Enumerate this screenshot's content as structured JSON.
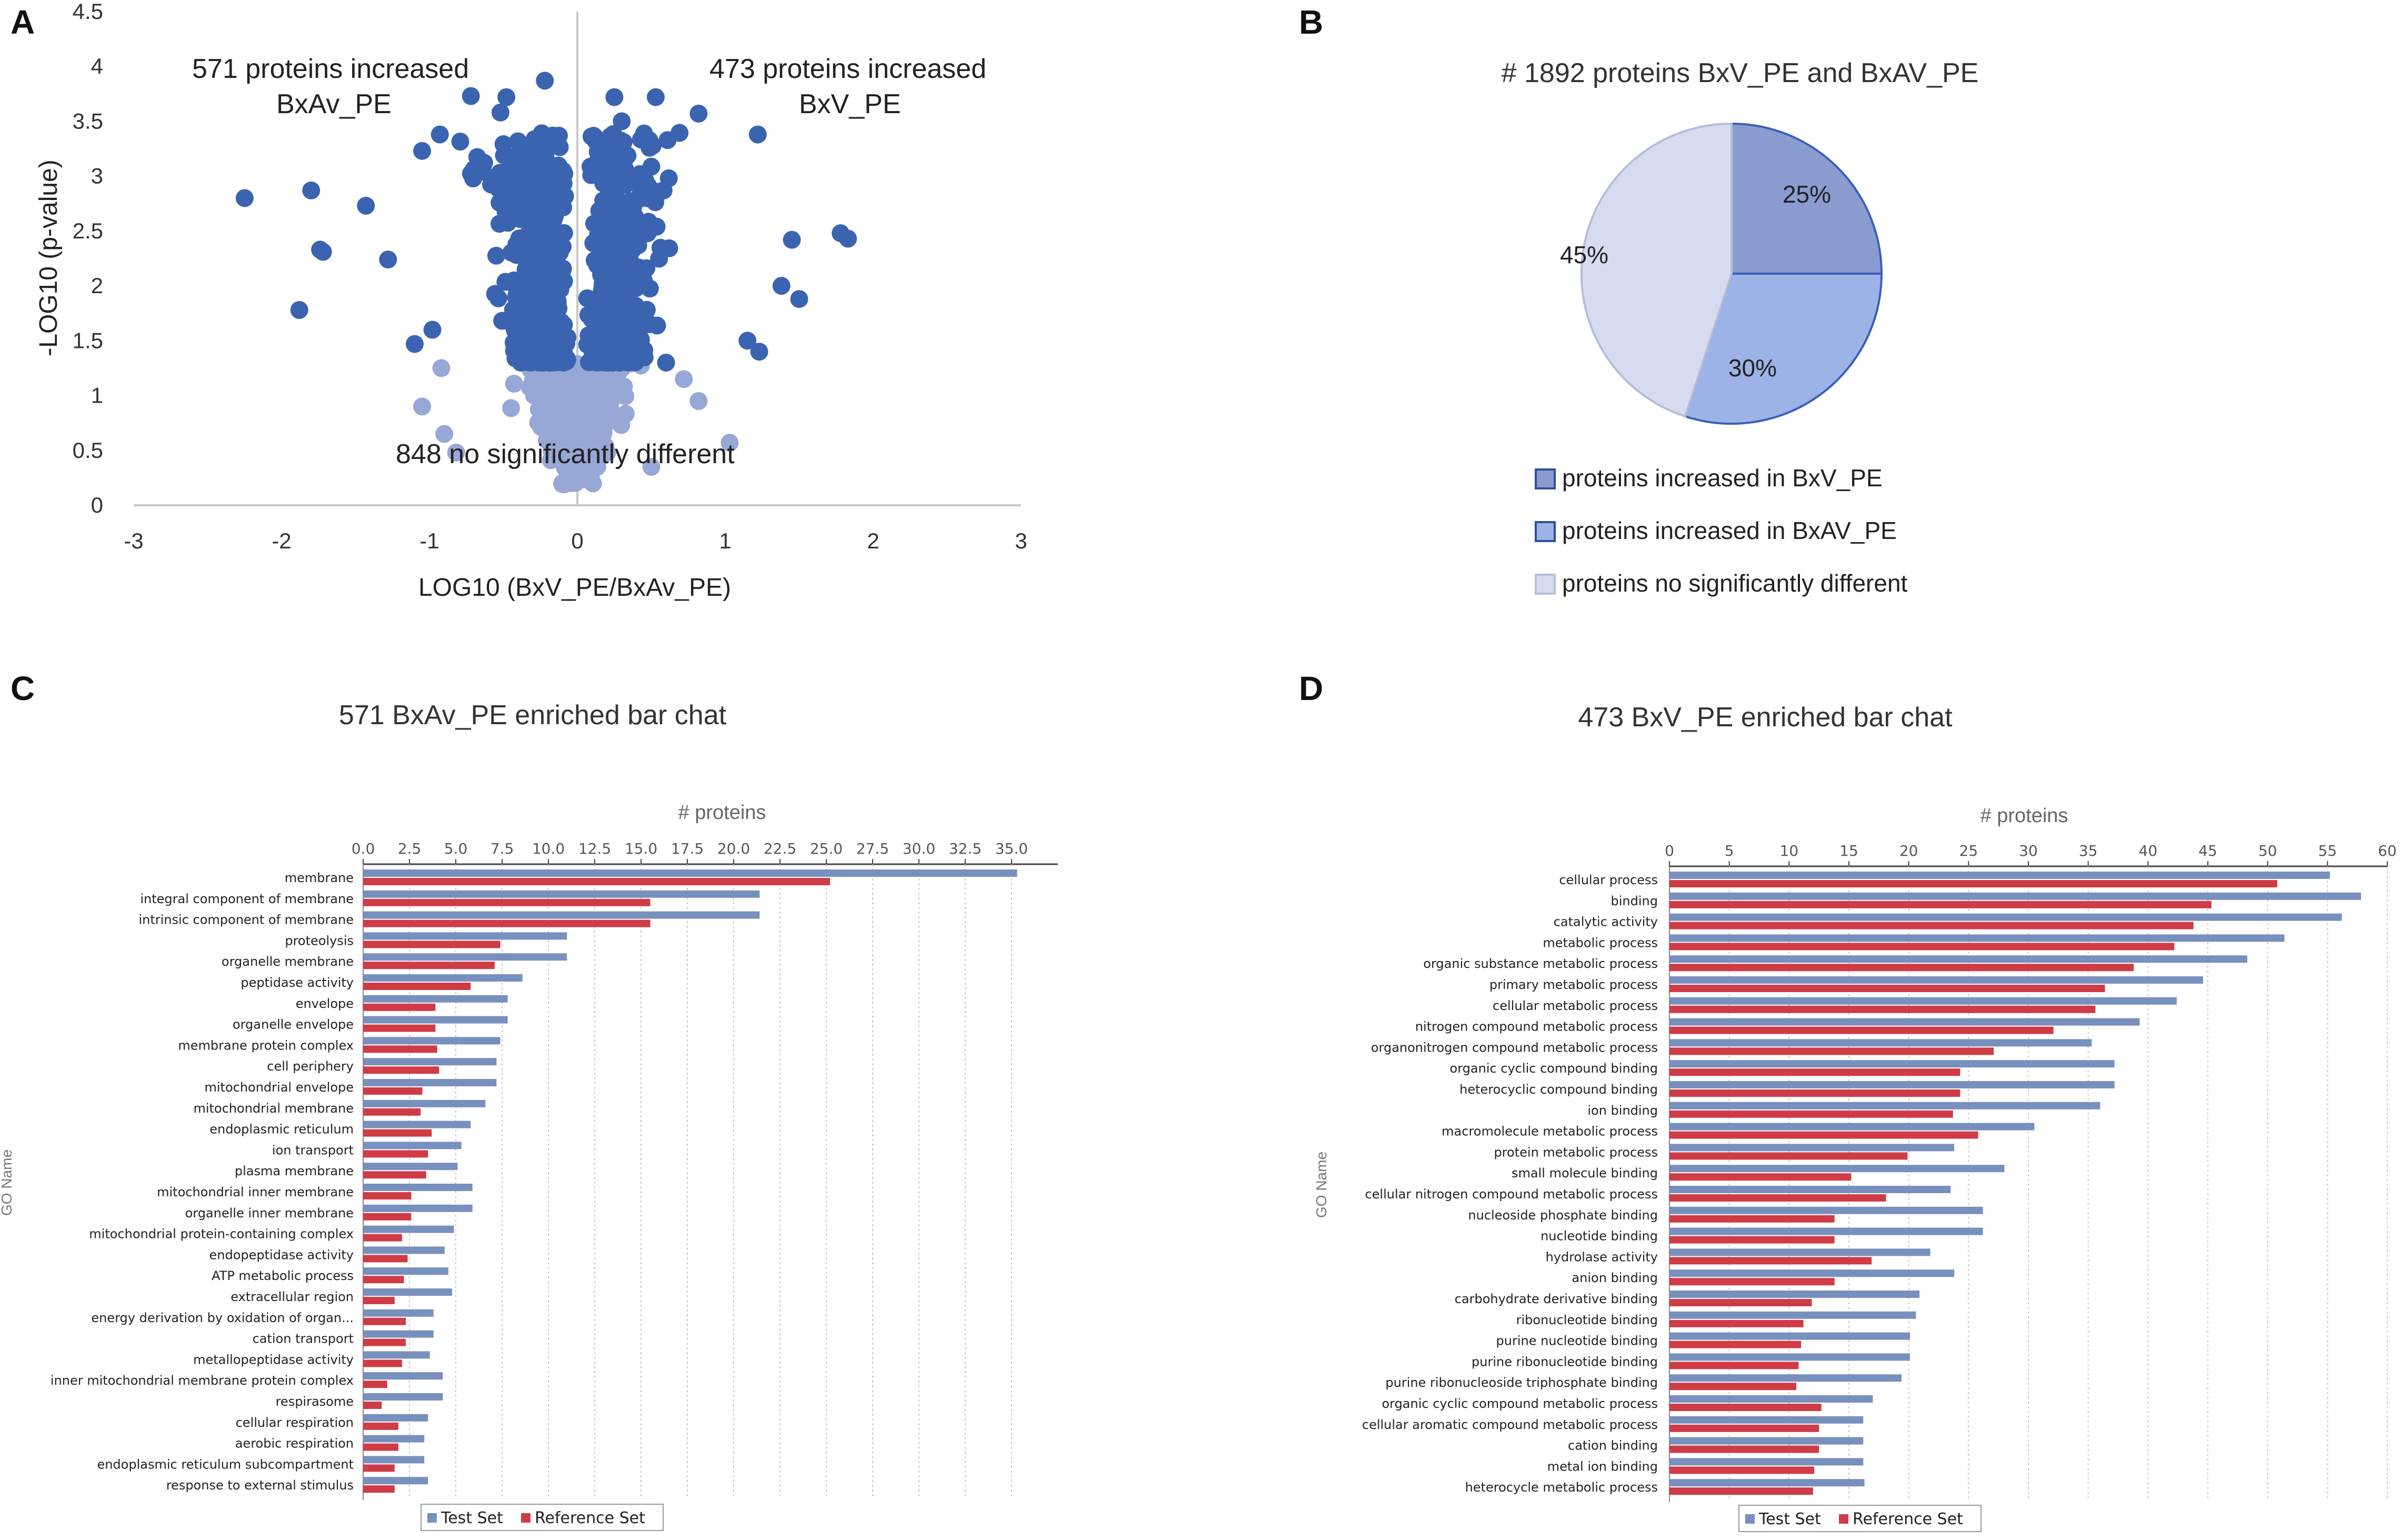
{
  "panels": {
    "a": "A",
    "b": "B",
    "c": "C",
    "d": "D"
  },
  "colors": {
    "sig": "#3a64b0",
    "nonsig": "#97a7d6",
    "pie_bxv": "#8a9ccf",
    "pie_bxav": "#9db2e6",
    "pie_nonsig": "#d6dcef",
    "test_bar": "#7890bd",
    "ref_bar": "#cf3c46"
  },
  "chart_data": [
    {
      "id": "A",
      "type": "scatter",
      "title": "",
      "xlabel": "LOG10 (BxV_PE/BxAv_PE)",
      "ylabel": "-LOG10 (p-value)",
      "xlim": [
        -3,
        3
      ],
      "ylim": [
        0,
        4.5
      ],
      "xticks": [
        "-3",
        "-2",
        "-1",
        "0",
        "1",
        "2",
        "3"
      ],
      "yticks": [
        "0",
        "0.5",
        "1",
        "1.5",
        "2",
        "2.5",
        "3",
        "3.5",
        "4",
        "4.5"
      ],
      "significance_threshold": 1.3,
      "annotations": {
        "left_line1": "571 proteins increased",
        "left_line2": "BxAv_PE",
        "right_line1": "473 proteins increased",
        "right_line2": "BxV_PE",
        "bottom": "848 no significantly different"
      },
      "outliers": [
        [
          -2.25,
          2.8
        ],
        [
          -1.8,
          2.87
        ],
        [
          -1.74,
          2.33
        ],
        [
          -1.72,
          2.31
        ],
        [
          -1.43,
          2.73
        ],
        [
          -1.88,
          1.78
        ],
        [
          -1.28,
          2.24
        ],
        [
          -1.05,
          3.23
        ],
        [
          -0.93,
          3.38
        ],
        [
          -0.72,
          3.73
        ],
        [
          -0.48,
          3.72
        ],
        [
          -0.22,
          3.87
        ],
        [
          -0.52,
          3.58
        ],
        [
          -1.1,
          1.47
        ],
        [
          -0.98,
          1.6
        ],
        [
          0.25,
          3.72
        ],
        [
          0.53,
          3.72
        ],
        [
          1.22,
          3.38
        ],
        [
          0.82,
          3.57
        ],
        [
          0.3,
          3.5
        ],
        [
          1.78,
          2.48
        ],
        [
          1.83,
          2.43
        ],
        [
          1.5,
          1.88
        ],
        [
          1.45,
          2.42
        ],
        [
          1.15,
          1.5
        ],
        [
          1.23,
          1.4
        ],
        [
          1.38,
          2.0
        ],
        [
          1.03,
          0.57
        ],
        [
          0.82,
          0.95
        ],
        [
          -0.82,
          0.48
        ],
        [
          -0.9,
          0.65
        ],
        [
          -1.05,
          0.9
        ],
        [
          -0.92,
          1.25
        ],
        [
          0.6,
          1.3
        ],
        [
          0.72,
          1.15
        ],
        [
          0.5,
          0.35
        ]
      ]
    },
    {
      "id": "B",
      "type": "pie",
      "title": "# 1892 proteins BxV_PE and BxAV_PE",
      "slices": [
        {
          "label": "proteins increased in BxV_PE",
          "value": 25,
          "pct": "25%"
        },
        {
          "label": "proteins increased in BxAV_PE",
          "value": 30,
          "pct": "30%"
        },
        {
          "label": "proteins no significantly different",
          "value": 45,
          "pct": "45%"
        }
      ]
    },
    {
      "id": "C",
      "type": "bar",
      "orientation": "horizontal",
      "title": "571 BxAv_PE enriched bar chat",
      "xlabel": "# proteins",
      "ylabel": "GO Name",
      "xlim": [
        0,
        37.5
      ],
      "xticks": [
        "0.0",
        "2.5",
        "5.0",
        "7.5",
        "10.0",
        "12.5",
        "15.0",
        "17.5",
        "20.0",
        "22.5",
        "25.0",
        "27.5",
        "30.0",
        "32.5",
        "35.0"
      ],
      "series": [
        {
          "name": "Test Set"
        },
        {
          "name": "Reference Set"
        }
      ],
      "categories": [
        "membrane",
        "integral component of membrane",
        "intrinsic component of membrane",
        "proteolysis",
        "organelle membrane",
        "peptidase activity",
        "envelope",
        "organelle envelope",
        "membrane protein complex",
        "cell periphery",
        "mitochondrial envelope",
        "mitochondrial membrane",
        "endoplasmic reticulum",
        "ion transport",
        "plasma membrane",
        "mitochondrial inner membrane",
        "organelle inner membrane",
        "mitochondrial protein-containing complex",
        "endopeptidase activity",
        "ATP metabolic process",
        "extracellular region",
        "energy derivation by oxidation of organ...",
        "cation transport",
        "metallopeptidase activity",
        "inner mitochondrial membrane protein complex",
        "respirasome",
        "cellular respiration",
        "aerobic respiration",
        "endoplasmic reticulum subcompartment",
        "response to external stimulus"
      ],
      "test": [
        35.3,
        21.4,
        21.4,
        11.0,
        11.0,
        8.6,
        7.8,
        7.8,
        7.4,
        7.2,
        7.2,
        6.6,
        5.8,
        5.3,
        5.1,
        5.9,
        5.9,
        4.9,
        4.4,
        4.6,
        4.8,
        3.8,
        3.8,
        3.6,
        4.3,
        4.3,
        3.5,
        3.3,
        3.3,
        3.5
      ],
      "reference": [
        25.2,
        15.5,
        15.5,
        7.4,
        7.1,
        5.8,
        3.9,
        3.9,
        4.0,
        4.1,
        3.2,
        3.1,
        3.7,
        3.5,
        3.4,
        2.6,
        2.6,
        2.1,
        2.4,
        2.2,
        1.7,
        2.3,
        2.3,
        2.1,
        1.3,
        1.0,
        1.9,
        1.9,
        1.7,
        1.7
      ]
    },
    {
      "id": "D",
      "type": "bar",
      "orientation": "horizontal",
      "title": "473 BxV_PE enriched bar chat",
      "xlabel": "# proteins",
      "ylabel": "GO Name",
      "xlim": [
        0,
        60
      ],
      "xticks": [
        "0",
        "5",
        "10",
        "15",
        "20",
        "25",
        "30",
        "35",
        "40",
        "45",
        "50",
        "55",
        "60"
      ],
      "series": [
        {
          "name": "Test Set"
        },
        {
          "name": "Reference Set"
        }
      ],
      "categories": [
        "cellular process",
        "binding",
        "catalytic activity",
        "metabolic process",
        "organic substance metabolic process",
        "primary metabolic process",
        "cellular metabolic process",
        "nitrogen compound metabolic process",
        "organonitrogen compound metabolic process",
        "organic cyclic compound binding",
        "heterocyclic compound binding",
        "ion binding",
        "macromolecule metabolic process",
        "protein metabolic process",
        "small molecule binding",
        "cellular nitrogen compound metabolic process",
        "nucleoside phosphate binding",
        "nucleotide binding",
        "hydrolase activity",
        "anion binding",
        "carbohydrate derivative binding",
        "ribonucleotide binding",
        "purine nucleotide binding",
        "purine ribonucleotide binding",
        "purine ribonucleoside triphosphate binding",
        "organic cyclic compound metabolic process",
        "cellular aromatic compound metabolic process",
        "cation binding",
        "metal ion binding",
        "heterocycle metabolic process"
      ],
      "test": [
        55.2,
        57.8,
        56.2,
        51.4,
        48.3,
        44.6,
        42.4,
        39.3,
        35.3,
        37.2,
        37.2,
        36.0,
        30.5,
        23.8,
        28.0,
        23.5,
        26.2,
        26.2,
        21.8,
        23.8,
        20.9,
        20.6,
        20.1,
        20.1,
        19.4,
        17.0,
        16.2,
        16.2,
        16.2,
        16.3
      ],
      "reference": [
        50.8,
        45.3,
        43.8,
        42.2,
        38.8,
        36.4,
        35.6,
        32.1,
        27.1,
        24.3,
        24.3,
        23.7,
        25.8,
        19.9,
        15.2,
        18.1,
        13.8,
        13.8,
        16.9,
        13.8,
        11.9,
        11.2,
        11.0,
        10.8,
        10.6,
        12.7,
        12.5,
        12.5,
        12.1,
        12.0
      ]
    }
  ]
}
